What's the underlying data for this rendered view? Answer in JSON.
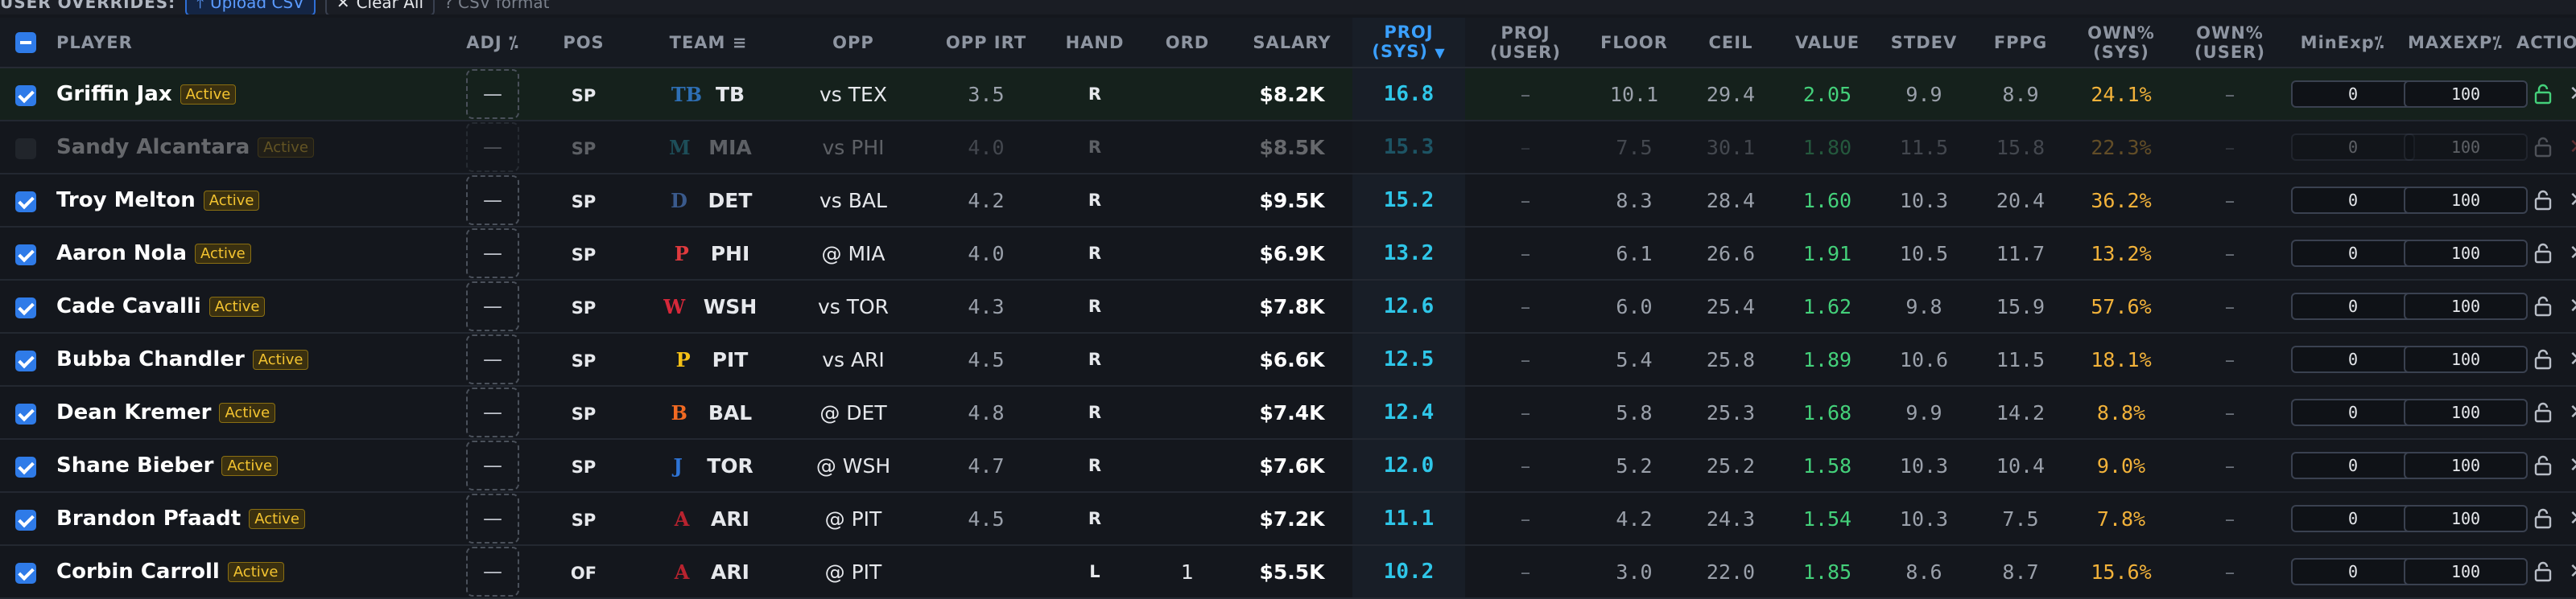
{
  "toolbar": {
    "overrides_label": "USER OVERRIDES:",
    "upload_label": "Upload CSV",
    "clear_label": "Clear All",
    "hint": "? CSV format"
  },
  "columns": {
    "player": "PLAYER",
    "adj": "ADJ",
    "pos": "POS",
    "team": "TEAM",
    "opp": "OPP",
    "opp_irt": "OPP IRT",
    "hand": "HAND",
    "ord": "ORD",
    "salary": "SALARY",
    "proj_sys_1": "PROJ",
    "proj_sys_2": "(SYS)",
    "proj_user_1": "PROJ",
    "proj_user_2": "(USER)",
    "floor": "FLOOR",
    "ceil": "CEIL",
    "value": "VALUE",
    "stdev": "STDEV",
    "fppg": "FPPG",
    "own_sys_1": "OWN%",
    "own_sys_2": "(SYS)",
    "own_user_1": "OWN%",
    "own_user_2": "(USER)",
    "minexp": "MinExp",
    "maxexp": "MAXEXP",
    "actions": "ACTIONS"
  },
  "colors": {
    "proj": "#2fc6e8",
    "value": "#44d07a",
    "own": "#f2b23a",
    "badge": "#f4c430",
    "accent": "#2f7be8"
  },
  "rows": [
    {
      "checked": true,
      "name": "Griffin Jax",
      "status": "Active",
      "adj": "—",
      "pos": "SP",
      "logo": "TB",
      "logo_color": "#2e6fb5",
      "team": "TB",
      "opp": "vs TEX",
      "opp_irt": "3.5",
      "hand": "R",
      "ord": "",
      "salary": "$8.2K",
      "proj": "16.8",
      "proj_user": "–",
      "floor": "10.1",
      "ceil": "29.4",
      "value": "2.05",
      "stdev": "9.9",
      "fppg": "8.9",
      "own": "24.1%",
      "own_user": "–",
      "minexp": "0",
      "maxexp": "100",
      "locked": true
    },
    {
      "checked": false,
      "name": "Sandy Alcantara",
      "status": "Active",
      "adj": "—",
      "pos": "SP",
      "logo": "M",
      "logo_color": "#2fb5c8",
      "team": "MIA",
      "opp": "vs PHI",
      "opp_irt": "4.0",
      "hand": "R",
      "ord": "",
      "salary": "$8.5K",
      "proj": "15.3",
      "proj_user": "–",
      "floor": "7.5",
      "ceil": "30.1",
      "value": "1.80",
      "stdev": "11.5",
      "fppg": "15.8",
      "own": "22.3%",
      "own_user": "–",
      "minexp": "0",
      "maxexp": "100",
      "locked": false,
      "excluded": true
    },
    {
      "checked": true,
      "name": "Troy Melton",
      "status": "Active",
      "adj": "—",
      "pos": "SP",
      "logo": "D",
      "logo_color": "#3a5a8c",
      "team": "DET",
      "opp": "vs BAL",
      "opp_irt": "4.2",
      "hand": "R",
      "ord": "",
      "salary": "$9.5K",
      "proj": "15.2",
      "proj_user": "–",
      "floor": "8.3",
      "ceil": "28.4",
      "value": "1.60",
      "stdev": "10.3",
      "fppg": "20.4",
      "own": "36.2%",
      "own_user": "–",
      "minexp": "0",
      "maxexp": "100",
      "locked": false
    },
    {
      "checked": true,
      "name": "Aaron Nola",
      "status": "Active",
      "adj": "—",
      "pos": "SP",
      "logo": "P",
      "logo_color": "#e03a3e",
      "team": "PHI",
      "opp": "@ MIA",
      "opp_irt": "4.0",
      "hand": "R",
      "ord": "",
      "salary": "$6.9K",
      "proj": "13.2",
      "proj_user": "–",
      "floor": "6.1",
      "ceil": "26.6",
      "value": "1.91",
      "stdev": "10.5",
      "fppg": "11.7",
      "own": "13.2%",
      "own_user": "–",
      "minexp": "0",
      "maxexp": "100",
      "locked": false
    },
    {
      "checked": true,
      "name": "Cade Cavalli",
      "status": "Active",
      "adj": "—",
      "pos": "SP",
      "logo": "W",
      "logo_color": "#d6283a",
      "team": "WSH",
      "opp": "vs TOR",
      "opp_irt": "4.3",
      "hand": "R",
      "ord": "",
      "salary": "$7.8K",
      "proj": "12.6",
      "proj_user": "–",
      "floor": "6.0",
      "ceil": "25.4",
      "value": "1.62",
      "stdev": "9.8",
      "fppg": "15.9",
      "own": "57.6%",
      "own_user": "–",
      "minexp": "0",
      "maxexp": "100",
      "locked": false
    },
    {
      "checked": true,
      "name": "Bubba Chandler",
      "status": "Active",
      "adj": "—",
      "pos": "SP",
      "logo": "P",
      "logo_color": "#f5c016",
      "team": "PIT",
      "opp": "vs ARI",
      "opp_irt": "4.5",
      "hand": "R",
      "ord": "",
      "salary": "$6.6K",
      "proj": "12.5",
      "proj_user": "–",
      "floor": "5.4",
      "ceil": "25.8",
      "value": "1.89",
      "stdev": "10.6",
      "fppg": "11.5",
      "own": "18.1%",
      "own_user": "–",
      "minexp": "0",
      "maxexp": "100",
      "locked": false
    },
    {
      "checked": true,
      "name": "Dean Kremer",
      "status": "Active",
      "adj": "—",
      "pos": "SP",
      "logo": "B",
      "logo_color": "#f26a22",
      "team": "BAL",
      "opp": "@ DET",
      "opp_irt": "4.8",
      "hand": "R",
      "ord": "",
      "salary": "$7.4K",
      "proj": "12.4",
      "proj_user": "–",
      "floor": "5.8",
      "ceil": "25.3",
      "value": "1.68",
      "stdev": "9.9",
      "fppg": "14.2",
      "own": "8.8%",
      "own_user": "–",
      "minexp": "0",
      "maxexp": "100",
      "locked": false
    },
    {
      "checked": true,
      "name": "Shane Bieber",
      "status": "Active",
      "adj": "—",
      "pos": "SP",
      "logo": "J",
      "logo_color": "#2e74d6",
      "team": "TOR",
      "opp": "@ WSH",
      "opp_irt": "4.7",
      "hand": "R",
      "ord": "",
      "salary": "$7.6K",
      "proj": "12.0",
      "proj_user": "–",
      "floor": "5.2",
      "ceil": "25.2",
      "value": "1.58",
      "stdev": "10.3",
      "fppg": "10.4",
      "own": "9.0%",
      "own_user": "–",
      "minexp": "0",
      "maxexp": "100",
      "locked": false
    },
    {
      "checked": true,
      "name": "Brandon Pfaadt",
      "status": "Active",
      "adj": "—",
      "pos": "SP",
      "logo": "A",
      "logo_color": "#b8232f",
      "team": "ARI",
      "opp": "@ PIT",
      "opp_irt": "4.5",
      "hand": "R",
      "ord": "",
      "salary": "$7.2K",
      "proj": "11.1",
      "proj_user": "–",
      "floor": "4.2",
      "ceil": "24.3",
      "value": "1.54",
      "stdev": "10.3",
      "fppg": "7.5",
      "own": "7.8%",
      "own_user": "–",
      "minexp": "0",
      "maxexp": "100",
      "locked": false
    },
    {
      "checked": true,
      "name": "Corbin Carroll",
      "status": "Active",
      "adj": "—",
      "pos": "OF",
      "logo": "A",
      "logo_color": "#b8232f",
      "team": "ARI",
      "opp": "@ PIT",
      "opp_irt": "",
      "hand": "L",
      "ord": "1",
      "salary": "$5.5K",
      "proj": "10.2",
      "proj_user": "–",
      "floor": "3.0",
      "ceil": "22.0",
      "value": "1.85",
      "stdev": "8.6",
      "fppg": "8.7",
      "own": "15.6%",
      "own_user": "–",
      "minexp": "0",
      "maxexp": "100",
      "locked": false
    }
  ]
}
